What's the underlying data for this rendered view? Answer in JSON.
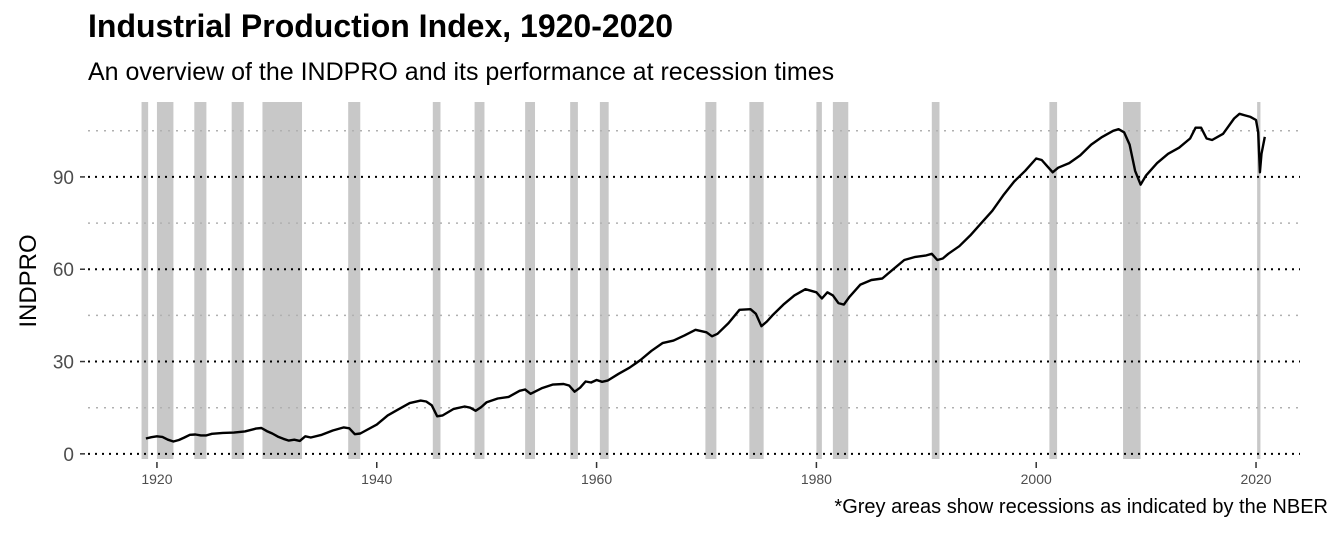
{
  "title": "Industrial Production Index, 1920-2020",
  "subtitle": "An overview of the INDPRO and its performance at recession times",
  "caption": "*Grey areas show recessions as indicated by the NBER",
  "chart_data": {
    "type": "line",
    "ylabel": "INDPRO",
    "xlabel": "",
    "xlim": [
      1913,
      2024
    ],
    "ylim": [
      -2,
      115
    ],
    "x_ticks": [
      1920,
      1940,
      1960,
      1980,
      2000,
      2020
    ],
    "x_tick_labels": [
      "1920",
      "1940",
      "1960",
      "1980",
      "2000",
      "2020"
    ],
    "y_major_ticks": [
      0,
      30,
      60,
      90
    ],
    "y_major_labels": [
      "0",
      "30",
      "60",
      "90"
    ],
    "y_minor_gridlines": [
      15,
      45,
      75,
      105
    ],
    "grid": "horizontal dotted",
    "colors": {
      "line": "#000000",
      "recession": "#c8c8c8",
      "major_grid": "#000000",
      "minor_grid": "#b0b0b0"
    },
    "recessions": [
      [
        1918.6,
        1919.2
      ],
      [
        1920.0,
        1921.5
      ],
      [
        1923.4,
        1924.5
      ],
      [
        1926.8,
        1927.9
      ],
      [
        1929.6,
        1933.2
      ],
      [
        1937.4,
        1938.5
      ],
      [
        1945.1,
        1945.8
      ],
      [
        1948.9,
        1949.8
      ],
      [
        1953.5,
        1954.4
      ],
      [
        1957.6,
        1958.3
      ],
      [
        1960.3,
        1961.1
      ],
      [
        1969.9,
        1970.9
      ],
      [
        1973.9,
        1975.2
      ],
      [
        1980.0,
        1980.5
      ],
      [
        1981.5,
        1982.9
      ],
      [
        1990.5,
        1991.2
      ],
      [
        2001.2,
        2001.9
      ],
      [
        2007.9,
        2009.5
      ],
      [
        2020.1,
        2020.4
      ]
    ],
    "series": [
      {
        "x": [
          1919.0,
          1919.5,
          1920.0,
          1920.5,
          1921.0,
          1921.5,
          1922.0,
          1922.5,
          1923.0,
          1923.5,
          1924.0,
          1924.5,
          1925.0,
          1926.0,
          1927.0,
          1928.0,
          1929.0,
          1929.5,
          1930.0,
          1930.5,
          1931.0,
          1931.5,
          1932.0,
          1932.5,
          1933.0,
          1933.5,
          1934.0,
          1935.0,
          1936.0,
          1937.0,
          1937.5,
          1938.0,
          1938.5,
          1939.0,
          1940.0,
          1941.0,
          1942.0,
          1943.0,
          1944.0,
          1944.5,
          1945.0,
          1945.5,
          1946.0,
          1947.0,
          1948.0,
          1948.5,
          1949.0,
          1949.5,
          1950.0,
          1951.0,
          1952.0,
          1953.0,
          1953.5,
          1954.0,
          1955.0,
          1956.0,
          1957.0,
          1957.5,
          1958.0,
          1958.5,
          1959.0,
          1959.5,
          1960.0,
          1960.5,
          1961.0,
          1962.0,
          1963.0,
          1964.0,
          1965.0,
          1966.0,
          1967.0,
          1968.0,
          1969.0,
          1970.0,
          1970.5,
          1971.0,
          1972.0,
          1973.0,
          1974.0,
          1974.5,
          1975.0,
          1975.5,
          1976.0,
          1977.0,
          1978.0,
          1979.0,
          1980.0,
          1980.5,
          1981.0,
          1981.5,
          1982.0,
          1982.5,
          1983.0,
          1984.0,
          1985.0,
          1986.0,
          1987.0,
          1988.0,
          1989.0,
          1990.0,
          1990.5,
          1991.0,
          1991.5,
          1992.0,
          1993.0,
          1994.0,
          1995.0,
          1996.0,
          1997.0,
          1998.0,
          1999.0,
          2000.0,
          2000.5,
          2001.0,
          2001.5,
          2002.0,
          2003.0,
          2004.0,
          2005.0,
          2006.0,
          2007.0,
          2007.5,
          2008.0,
          2008.5,
          2009.0,
          2009.5,
          2010.0,
          2011.0,
          2012.0,
          2013.0,
          2014.0,
          2014.5,
          2015.0,
          2015.5,
          2016.0,
          2017.0,
          2018.0,
          2018.5,
          2019.0,
          2019.5,
          2020.0,
          2020.2,
          2020.35,
          2020.5,
          2020.8
        ],
        "values": [
          5.0,
          5.4,
          5.7,
          5.5,
          4.6,
          4.0,
          4.5,
          5.3,
          6.2,
          6.3,
          6.0,
          6.0,
          6.5,
          6.8,
          6.9,
          7.3,
          8.2,
          8.4,
          7.4,
          6.6,
          5.6,
          4.9,
          4.3,
          4.6,
          4.2,
          5.7,
          5.3,
          6.2,
          7.6,
          8.6,
          8.3,
          6.4,
          6.6,
          7.6,
          9.5,
          12.5,
          14.5,
          16.5,
          17.3,
          17.0,
          15.8,
          12.2,
          12.5,
          14.6,
          15.4,
          15.0,
          14.0,
          15.2,
          16.8,
          18.0,
          18.5,
          20.5,
          20.9,
          19.5,
          21.3,
          22.5,
          22.7,
          22.2,
          20.2,
          21.5,
          23.5,
          23.2,
          24.0,
          23.4,
          23.8,
          26.0,
          28.0,
          30.5,
          33.5,
          36.0,
          36.8,
          38.5,
          40.3,
          39.5,
          38.2,
          39.0,
          42.5,
          46.8,
          47.0,
          45.5,
          41.5,
          43.0,
          45.0,
          48.5,
          51.5,
          53.5,
          52.5,
          50.5,
          52.5,
          51.5,
          49.0,
          48.5,
          51.0,
          55.0,
          56.5,
          57.0,
          60.0,
          63.0,
          64.0,
          64.5,
          65.0,
          63.0,
          63.5,
          65.0,
          67.5,
          71.0,
          75.0,
          79.0,
          84.0,
          88.5,
          92.0,
          96.0,
          95.5,
          93.5,
          91.5,
          93.0,
          94.5,
          97.0,
          100.5,
          103.0,
          105.0,
          105.5,
          104.5,
          100.5,
          92.0,
          87.5,
          90.5,
          94.5,
          97.5,
          99.5,
          102.5,
          106.0,
          106.0,
          102.5,
          102.0,
          104.0,
          109.0,
          110.5,
          110.0,
          109.5,
          108.5,
          104.5,
          91.5,
          97.5,
          103.0
        ]
      }
    ]
  }
}
